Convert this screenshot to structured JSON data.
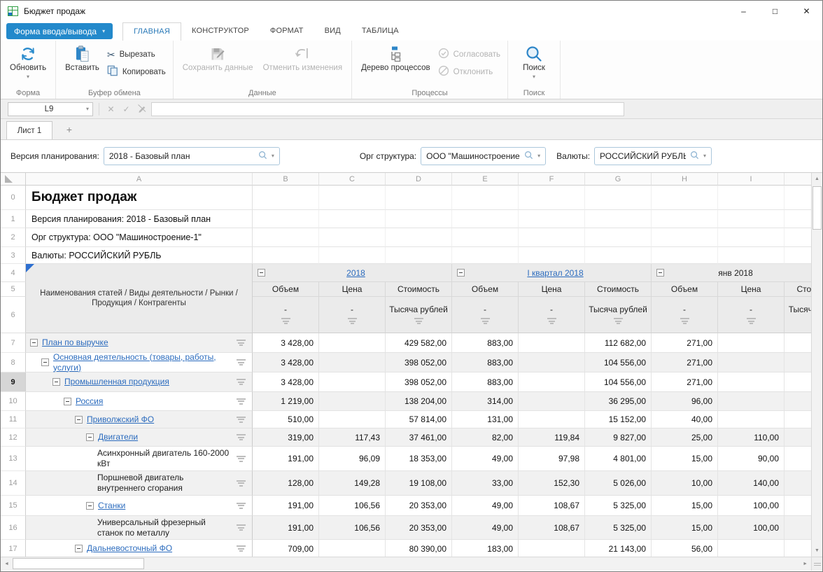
{
  "window": {
    "title": "Бюджет продаж"
  },
  "icons": {
    "caret": "▾",
    "cancel": "✕",
    "confirm": "✓",
    "minimize": "–",
    "maximize": "□",
    "close": "✕",
    "up": "▲",
    "down": "▼",
    "left": "◄",
    "right": "►"
  },
  "menu": {
    "form_button": "Форма ввода/вывода",
    "tabs": [
      {
        "label": "ГЛАВНАЯ"
      },
      {
        "label": "КОНСТРУКТОР"
      },
      {
        "label": "ФОРМАТ"
      },
      {
        "label": "ВИД"
      },
      {
        "label": "ТАБЛИЦА"
      }
    ]
  },
  "ribbon": {
    "groups": [
      {
        "label": "Форма",
        "buttons": [
          {
            "label": "Обновить"
          }
        ]
      },
      {
        "label": "Буфер обмена",
        "buttons": [
          {
            "label": "Вставить"
          },
          {
            "label": "Вырезать"
          },
          {
            "label": "Копировать"
          }
        ]
      },
      {
        "label": "Данные",
        "buttons": [
          {
            "label": "Сохранить данные"
          },
          {
            "label": "Отменить изменения"
          }
        ]
      },
      {
        "label": "Процессы",
        "buttons": [
          {
            "label": "Дерево процессов"
          },
          {
            "label": "Согласовать"
          },
          {
            "label": "Отклонить"
          }
        ]
      },
      {
        "label": "Поиск",
        "buttons": [
          {
            "label": "Поиск"
          }
        ]
      }
    ]
  },
  "formula_bar": {
    "cell_ref": "L9",
    "formula": ""
  },
  "sheet_tabs": {
    "active": "Лист 1",
    "add": "+"
  },
  "filters": [
    {
      "label": "Версия планирования:",
      "value": "2018 - Базовый план"
    },
    {
      "label": "Орг структура:",
      "value": "ООО \"Машиностроение-1\""
    },
    {
      "label": "Валюты:",
      "value": "РОССИЙСКИЙ РУБЛЬ"
    }
  ],
  "grid": {
    "col_letters": [
      "A",
      "B",
      "C",
      "D",
      "E",
      "F",
      "G",
      "H",
      "I"
    ],
    "info_rows": [
      {
        "num": "0",
        "text": "Бюджет продаж",
        "title": true
      },
      {
        "num": "1",
        "text": "Версия планирования: 2018 - Базовый план"
      },
      {
        "num": "2",
        "text": "Орг структура: ООО \"Машиностроение-1\""
      },
      {
        "num": "3",
        "text": "Валюты: РОССИЙСКИЙ РУБЛЬ"
      }
    ],
    "header": {
      "row_nums": [
        "4",
        "5",
        "6"
      ],
      "name_column": "Наименования статей / Виды деятельности / Рынки / Продукция / Контрагенты",
      "groups": [
        {
          "label": "2018",
          "link": true
        },
        {
          "label": "I квартал 2018",
          "link": true
        },
        {
          "label": "янв 2018",
          "link": false
        }
      ],
      "measures": [
        "Объем",
        "Цена",
        "Стоимость"
      ],
      "units": [
        "-",
        "-",
        "Тысяча рублей"
      ]
    },
    "selected_row": "9",
    "rows": [
      {
        "num": "7",
        "level": 0,
        "link": true,
        "label": "План по выручке",
        "values": [
          "3 428,00",
          "",
          "429 582,00",
          "883,00",
          "",
          "112 682,00",
          "271,00",
          ""
        ]
      },
      {
        "num": "8",
        "level": 1,
        "link": true,
        "label": "Основная деятельность (товары, работы, услуги)",
        "values": [
          "3 428,00",
          "",
          "398 052,00",
          "883,00",
          "",
          "104 556,00",
          "271,00",
          ""
        ]
      },
      {
        "num": "9",
        "level": 2,
        "link": true,
        "label": "Промышленная продукция",
        "values": [
          "3 428,00",
          "",
          "398 052,00",
          "883,00",
          "",
          "104 556,00",
          "271,00",
          ""
        ]
      },
      {
        "num": "10",
        "level": 3,
        "link": true,
        "label": "Россия",
        "values": [
          "1 219,00",
          "",
          "138 204,00",
          "314,00",
          "",
          "36 295,00",
          "96,00",
          ""
        ]
      },
      {
        "num": "11",
        "level": 4,
        "link": true,
        "label": "Приволжский ФО",
        "values": [
          "510,00",
          "",
          "57 814,00",
          "131,00",
          "",
          "15 152,00",
          "40,00",
          ""
        ]
      },
      {
        "num": "12",
        "level": 5,
        "link": true,
        "label": "Двигатели",
        "values": [
          "319,00",
          "117,43",
          "37 461,00",
          "82,00",
          "119,84",
          "9 827,00",
          "25,00",
          "110,00"
        ]
      },
      {
        "num": "13",
        "level": 6,
        "link": false,
        "label": "Асинхронный двигатель 160-2000 кВт",
        "values": [
          "191,00",
          "96,09",
          "18 353,00",
          "49,00",
          "97,98",
          "4 801,00",
          "15,00",
          "90,00"
        ]
      },
      {
        "num": "14",
        "level": 6,
        "link": false,
        "label": "Поршневой двигатель внутреннего сгорания",
        "values": [
          "128,00",
          "149,28",
          "19 108,00",
          "33,00",
          "152,30",
          "5 026,00",
          "10,00",
          "140,00"
        ]
      },
      {
        "num": "15",
        "level": 5,
        "link": true,
        "label": "Станки",
        "values": [
          "191,00",
          "106,56",
          "20 353,00",
          "49,00",
          "108,67",
          "5 325,00",
          "15,00",
          "100,00"
        ]
      },
      {
        "num": "16",
        "level": 6,
        "link": false,
        "label": "Универсальный фрезерный станок по металлу",
        "values": [
          "191,00",
          "106,56",
          "20 353,00",
          "49,00",
          "108,67",
          "5 325,00",
          "15,00",
          "100,00"
        ]
      },
      {
        "num": "17",
        "level": 4,
        "link": true,
        "label": "Дальневосточный ФО",
        "values": [
          "709,00",
          "",
          "80 390,00",
          "183,00",
          "",
          "21 143,00",
          "56,00",
          ""
        ]
      }
    ]
  }
}
